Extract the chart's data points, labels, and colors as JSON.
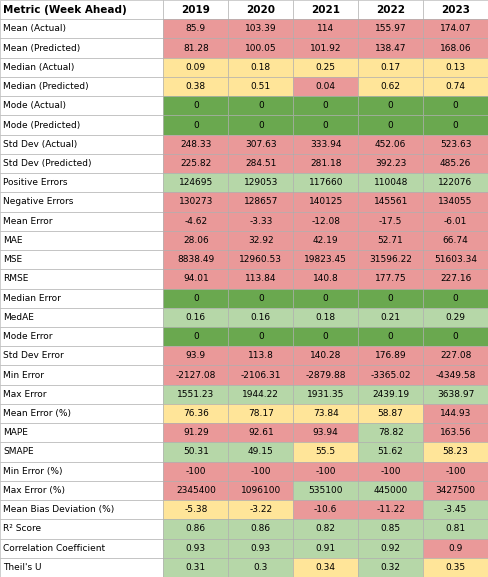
{
  "headers": [
    "Metric (Week Ahead)",
    "2019",
    "2020",
    "2021",
    "2022",
    "2023"
  ],
  "rows": [
    [
      "Mean (Actual)",
      "85.9",
      "103.39",
      "114",
      "155.97",
      "174.07"
    ],
    [
      "Mean (Predicted)",
      "81.28",
      "100.05",
      "101.92",
      "138.47",
      "168.06"
    ],
    [
      "Median (Actual)",
      "0.09",
      "0.18",
      "0.25",
      "0.17",
      "0.13"
    ],
    [
      "Median (Predicted)",
      "0.38",
      "0.51",
      "0.04",
      "0.62",
      "0.74"
    ],
    [
      "Mode (Actual)",
      "0",
      "0",
      "0",
      "0",
      "0"
    ],
    [
      "Mode (Predicted)",
      "0",
      "0",
      "0",
      "0",
      "0"
    ],
    [
      "Std Dev (Actual)",
      "248.33",
      "307.63",
      "333.94",
      "452.06",
      "523.63"
    ],
    [
      "Std Dev (Predicted)",
      "225.82",
      "284.51",
      "281.18",
      "392.23",
      "485.26"
    ],
    [
      "Positive Errors",
      "124695",
      "129053",
      "117660",
      "110048",
      "122076"
    ],
    [
      "Negative Errors",
      "130273",
      "128657",
      "140125",
      "145561",
      "134055"
    ],
    [
      "Mean Error",
      "-4.62",
      "-3.33",
      "-12.08",
      "-17.5",
      "-6.01"
    ],
    [
      "MAE",
      "28.06",
      "32.92",
      "42.19",
      "52.71",
      "66.74"
    ],
    [
      "MSE",
      "8838.49",
      "12960.53",
      "19823.45",
      "31596.22",
      "51603.34"
    ],
    [
      "RMSE",
      "94.01",
      "113.84",
      "140.8",
      "177.75",
      "227.16"
    ],
    [
      "Median Error",
      "0",
      "0",
      "0",
      "0",
      "0"
    ],
    [
      "MedAE",
      "0.16",
      "0.16",
      "0.18",
      "0.21",
      "0.29"
    ],
    [
      "Mode Error",
      "0",
      "0",
      "0",
      "0",
      "0"
    ],
    [
      "Std Dev Error",
      "93.9",
      "113.8",
      "140.28",
      "176.89",
      "227.08"
    ],
    [
      "Min Error",
      "-2127.08",
      "-2106.31",
      "-2879.88",
      "-3365.02",
      "-4349.58"
    ],
    [
      "Max Error",
      "1551.23",
      "1944.22",
      "1931.35",
      "2439.19",
      "3638.97"
    ],
    [
      "Mean Error (%)",
      "76.36",
      "78.17",
      "73.84",
      "58.87",
      "144.93"
    ],
    [
      "MAPE",
      "91.29",
      "92.61",
      "93.94",
      "78.82",
      "163.56"
    ],
    [
      "SMAPE",
      "50.31",
      "49.15",
      "55.5",
      "51.62",
      "58.23"
    ],
    [
      "Min Error (%)",
      "-100",
      "-100",
      "-100",
      "-100",
      "-100"
    ],
    [
      "Max Error (%)",
      "2345400",
      "1096100",
      "535100",
      "445000",
      "3427500"
    ],
    [
      "Mean Bias Deviation (%)",
      "-5.38",
      "-3.22",
      "-10.6",
      "-11.22",
      "-3.45"
    ],
    [
      "R² Score",
      "0.86",
      "0.86",
      "0.82",
      "0.85",
      "0.81"
    ],
    [
      "Correlation Coefficient",
      "0.93",
      "0.93",
      "0.91",
      "0.92",
      "0.9"
    ],
    [
      "Theil's U",
      "0.31",
      "0.3",
      "0.34",
      "0.32",
      "0.35"
    ]
  ],
  "cell_colors": [
    [
      "#ea9999",
      "#ea9999",
      "#ea9999",
      "#ea9999",
      "#ea9999"
    ],
    [
      "#ea9999",
      "#ea9999",
      "#ea9999",
      "#ea9999",
      "#ea9999"
    ],
    [
      "#ffe599",
      "#ffe599",
      "#ffe599",
      "#ffe599",
      "#ffe599"
    ],
    [
      "#ffe599",
      "#ffe599",
      "#ea9999",
      "#ffe599",
      "#ffe599"
    ],
    [
      "#6aa84f",
      "#6aa84f",
      "#6aa84f",
      "#6aa84f",
      "#6aa84f"
    ],
    [
      "#6aa84f",
      "#6aa84f",
      "#6aa84f",
      "#6aa84f",
      "#6aa84f"
    ],
    [
      "#ea9999",
      "#ea9999",
      "#ea9999",
      "#ea9999",
      "#ea9999"
    ],
    [
      "#ea9999",
      "#ea9999",
      "#ea9999",
      "#ea9999",
      "#ea9999"
    ],
    [
      "#b6d7a8",
      "#b6d7a8",
      "#b6d7a8",
      "#b6d7a8",
      "#b6d7a8"
    ],
    [
      "#ea9999",
      "#ea9999",
      "#ea9999",
      "#ea9999",
      "#ea9999"
    ],
    [
      "#ea9999",
      "#ea9999",
      "#ea9999",
      "#ea9999",
      "#ea9999"
    ],
    [
      "#ea9999",
      "#ea9999",
      "#ea9999",
      "#ea9999",
      "#ea9999"
    ],
    [
      "#ea9999",
      "#ea9999",
      "#ea9999",
      "#ea9999",
      "#ea9999"
    ],
    [
      "#ea9999",
      "#ea9999",
      "#ea9999",
      "#ea9999",
      "#ea9999"
    ],
    [
      "#6aa84f",
      "#6aa84f",
      "#6aa84f",
      "#6aa84f",
      "#6aa84f"
    ],
    [
      "#b6d7a8",
      "#b6d7a8",
      "#b6d7a8",
      "#b6d7a8",
      "#b6d7a8"
    ],
    [
      "#6aa84f",
      "#6aa84f",
      "#6aa84f",
      "#6aa84f",
      "#6aa84f"
    ],
    [
      "#ea9999",
      "#ea9999",
      "#ea9999",
      "#ea9999",
      "#ea9999"
    ],
    [
      "#ea9999",
      "#ea9999",
      "#ea9999",
      "#ea9999",
      "#ea9999"
    ],
    [
      "#b6d7a8",
      "#b6d7a8",
      "#b6d7a8",
      "#b6d7a8",
      "#b6d7a8"
    ],
    [
      "#ffe599",
      "#ffe599",
      "#ffe599",
      "#ffe599",
      "#ea9999"
    ],
    [
      "#ea9999",
      "#ea9999",
      "#ea9999",
      "#b6d7a8",
      "#ea9999"
    ],
    [
      "#b6d7a8",
      "#b6d7a8",
      "#ffe599",
      "#b6d7a8",
      "#ffe599"
    ],
    [
      "#ea9999",
      "#ea9999",
      "#ea9999",
      "#ea9999",
      "#ea9999"
    ],
    [
      "#ea9999",
      "#ea9999",
      "#b6d7a8",
      "#b6d7a8",
      "#ea9999"
    ],
    [
      "#ffe599",
      "#ffe599",
      "#ea9999",
      "#ea9999",
      "#b6d7a8"
    ],
    [
      "#b6d7a8",
      "#b6d7a8",
      "#b6d7a8",
      "#b6d7a8",
      "#b6d7a8"
    ],
    [
      "#b6d7a8",
      "#b6d7a8",
      "#b6d7a8",
      "#b6d7a8",
      "#ea9999"
    ],
    [
      "#b6d7a8",
      "#b6d7a8",
      "#ffe599",
      "#b6d7a8",
      "#ffe599"
    ]
  ],
  "header_bg": "#ffffff",
  "metric_col_bg": "#ffffff",
  "figsize": [
    4.88,
    5.77
  ],
  "dpi": 100,
  "font_size": 6.5,
  "header_font_size": 7.5,
  "border_color": "#999999"
}
